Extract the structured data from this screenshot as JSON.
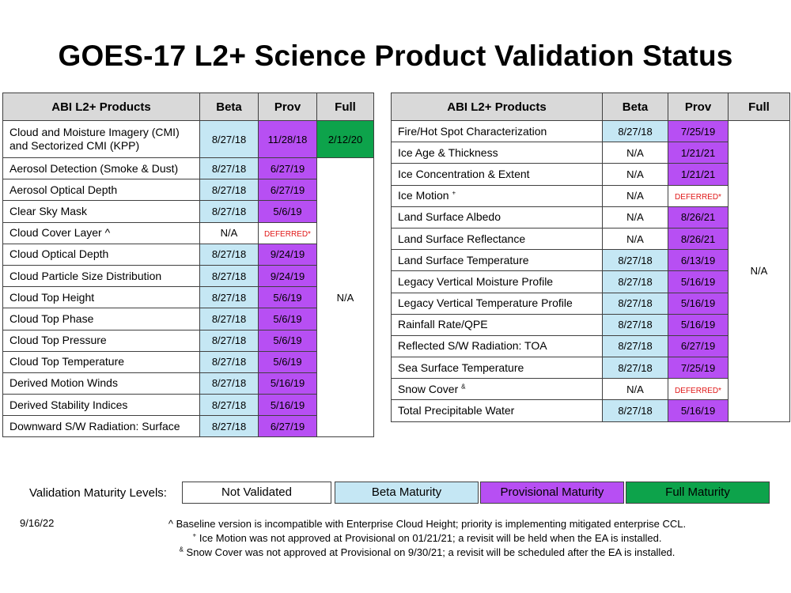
{
  "title": "GOES-17 L2+ Science Product Validation Status",
  "colors": {
    "not_validated": "#ffffff",
    "beta": "#c5e7f4",
    "provisional": "#b74ff3",
    "full": "#0da34b",
    "header": "#d9d9d9",
    "deferred_text": "#e01818"
  },
  "headers": {
    "products": "ABI L2+ Products",
    "beta": "Beta",
    "prov": "Prov",
    "full": "Full"
  },
  "left_table": {
    "rows": [
      {
        "product": "Cloud and Moisture Imagery (CMI) and Sectorized CMI (KPP)",
        "beta": "8/27/18",
        "beta_status": "beta",
        "prov": "11/28/18",
        "prov_status": "prov",
        "full": "2/12/20"
      },
      {
        "product": "Aerosol Detection (Smoke & Dust)",
        "beta": "8/27/18",
        "beta_status": "beta",
        "prov": "6/27/19",
        "prov_status": "prov"
      },
      {
        "product": "Aerosol Optical Depth",
        "beta": "8/27/18",
        "beta_status": "beta",
        "prov": "6/27/19",
        "prov_status": "prov"
      },
      {
        "product": "Clear Sky Mask",
        "beta": "8/27/18",
        "beta_status": "beta",
        "prov": "5/6/19",
        "prov_status": "prov"
      },
      {
        "product": "Cloud Cover Layer ^",
        "beta": "N/A",
        "beta_status": "nv",
        "prov": "DEFERRED*",
        "prov_status": "deferred"
      },
      {
        "product": "Cloud Optical Depth",
        "beta": "8/27/18",
        "beta_status": "beta",
        "prov": "9/24/19",
        "prov_status": "prov"
      },
      {
        "product": "Cloud Particle Size Distribution",
        "beta": "8/27/18",
        "beta_status": "beta",
        "prov": "9/24/19",
        "prov_status": "prov"
      },
      {
        "product": "Cloud Top Height",
        "beta": "8/27/18",
        "beta_status": "beta",
        "prov": "5/6/19",
        "prov_status": "prov"
      },
      {
        "product": "Cloud Top Phase",
        "beta": "8/27/18",
        "beta_status": "beta",
        "prov": "5/6/19",
        "prov_status": "prov"
      },
      {
        "product": "Cloud Top Pressure",
        "beta": "8/27/18",
        "beta_status": "beta",
        "prov": "5/6/19",
        "prov_status": "prov"
      },
      {
        "product": "Cloud Top Temperature",
        "beta": "8/27/18",
        "beta_status": "beta",
        "prov": "5/6/19",
        "prov_status": "prov"
      },
      {
        "product": "Derived Motion Winds",
        "beta": "8/27/18",
        "beta_status": "beta",
        "prov": "5/16/19",
        "prov_status": "prov"
      },
      {
        "product": "Derived Stability Indices",
        "beta": "8/27/18",
        "beta_status": "beta",
        "prov": "5/16/19",
        "prov_status": "prov"
      },
      {
        "product": "Downward S/W Radiation: Surface",
        "beta": "8/27/18",
        "beta_status": "beta",
        "prov": "6/27/19",
        "prov_status": "prov"
      }
    ],
    "full_merged": "N/A"
  },
  "right_table": {
    "rows": [
      {
        "product": "Fire/Hot Spot Characterization",
        "beta": "8/27/18",
        "beta_status": "beta",
        "prov": "7/25/19",
        "prov_status": "prov"
      },
      {
        "product": "Ice Age & Thickness",
        "beta": "N/A",
        "beta_status": "nv",
        "prov": "1/21/21",
        "prov_status": "prov"
      },
      {
        "product": "Ice Concentration & Extent",
        "beta": "N/A",
        "beta_status": "nv",
        "prov": "1/21/21",
        "prov_status": "prov"
      },
      {
        "product": "Ice Motion",
        "product_sup": "+",
        "beta": "N/A",
        "beta_status": "nv",
        "prov": "DEFERRED*",
        "prov_status": "deferred"
      },
      {
        "product": "Land Surface Albedo",
        "beta": "N/A",
        "beta_status": "nv",
        "prov": "8/26/21",
        "prov_status": "prov"
      },
      {
        "product": "Land Surface Reflectance",
        "beta": "N/A",
        "beta_status": "nv",
        "prov": "8/26/21",
        "prov_status": "prov"
      },
      {
        "product": "Land Surface Temperature",
        "beta": "8/27/18",
        "beta_status": "beta",
        "prov": "6/13/19",
        "prov_status": "prov"
      },
      {
        "product": "Legacy Vertical Moisture Profile",
        "beta": "8/27/18",
        "beta_status": "beta",
        "prov": "5/16/19",
        "prov_status": "prov"
      },
      {
        "product": "Legacy Vertical Temperature Profile",
        "beta": "8/27/18",
        "beta_status": "beta",
        "prov": "5/16/19",
        "prov_status": "prov"
      },
      {
        "product": "Rainfall Rate/QPE",
        "beta": "8/27/18",
        "beta_status": "beta",
        "prov": "5/16/19",
        "prov_status": "prov"
      },
      {
        "product": "Reflected S/W Radiation: TOA",
        "beta": "8/27/18",
        "beta_status": "beta",
        "prov": "6/27/19",
        "prov_status": "prov"
      },
      {
        "product": "Sea Surface Temperature",
        "beta": "8/27/18",
        "beta_status": "beta",
        "prov": "7/25/19",
        "prov_status": "prov"
      },
      {
        "product": "Snow Cover",
        "product_sup": "&",
        "beta": "N/A",
        "beta_status": "nv",
        "prov": "DEFERRED*",
        "prov_status": "deferred"
      },
      {
        "product": "Total Precipitable Water",
        "beta": "8/27/18",
        "beta_status": "beta",
        "prov": "5/16/19",
        "prov_status": "prov"
      }
    ],
    "full_merged": "N/A"
  },
  "legend": {
    "label": "Validation Maturity Levels:",
    "items": [
      {
        "label": "Not Validated",
        "status": "nv"
      },
      {
        "label": "Beta Maturity",
        "status": "beta"
      },
      {
        "label": "Provisional Maturity",
        "status": "prov"
      },
      {
        "label": "Full Maturity",
        "status": "full"
      }
    ]
  },
  "date": "9/16/22",
  "footnotes": [
    {
      "mark": "",
      "text": "^ Baseline version is incompatible with Enterprise Cloud Height; priority is implementing mitigated enterprise CCL."
    },
    {
      "mark": "+",
      "text": " Ice Motion was not approved at Provisional on 01/21/21; a revisit will be held when the EA is installed."
    },
    {
      "mark": "&",
      "text": " Snow Cover was not approved at Provisional on 9/30/21; a revisit will be scheduled after the EA is installed."
    }
  ]
}
